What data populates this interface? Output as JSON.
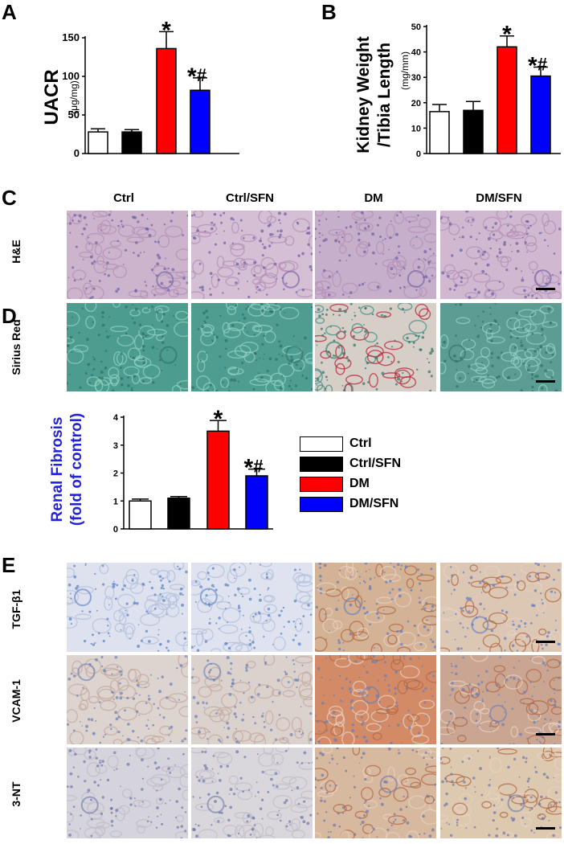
{
  "panels": {
    "A": "A",
    "B": "B",
    "C": "C",
    "D": "D",
    "E": "E"
  },
  "colors": {
    "ctrl": "#ffffff",
    "ctrl_sfn": "#000000",
    "dm": "#ff0000",
    "dm_sfn": "#0000ff",
    "fibrosis_label": "#2323d8"
  },
  "chart_data": [
    {
      "id": "A",
      "type": "bar",
      "categories": [
        "Ctrl",
        "Ctrl/SFN",
        "DM",
        "DM/SFN"
      ],
      "values": [
        28,
        28,
        136,
        82
      ],
      "errors": [
        4,
        3,
        22,
        16
      ],
      "annotations": [
        "",
        "",
        "*",
        "*#"
      ],
      "ylabel": "UACR",
      "yunit": "(μg/mg)",
      "ylim": [
        0,
        150
      ],
      "yticks": [
        "0",
        "50",
        "100",
        "150"
      ]
    },
    {
      "id": "B",
      "type": "bar",
      "categories": [
        "Ctrl",
        "Ctrl/SFN",
        "DM",
        "DM/SFN"
      ],
      "values": [
        16.5,
        17,
        42,
        30.5
      ],
      "errors": [
        2.8,
        3.5,
        4.3,
        3.5
      ],
      "annotations": [
        "",
        "",
        "*",
        "*#"
      ],
      "ylabel_line1": "Kidney Weight",
      "ylabel_line2": "/Tibia Length",
      "yunit": "(mg/mm)",
      "ylim": [
        0,
        50
      ],
      "yticks": [
        "0",
        "10",
        "20",
        "30",
        "40",
        "50"
      ]
    },
    {
      "id": "D",
      "type": "bar",
      "categories": [
        "Ctrl",
        "Ctrl/SFN",
        "DM",
        "DM/SFN"
      ],
      "values": [
        1.0,
        1.1,
        3.5,
        1.9
      ],
      "errors": [
        0.07,
        0.06,
        0.38,
        0.24
      ],
      "annotations": [
        "",
        "",
        "*",
        "*#"
      ],
      "ylabel_line1": "Renal Fibrosis",
      "ylabel_line2": "(fold of control)",
      "ylim": [
        0,
        4
      ],
      "yticks": [
        "0",
        "1",
        "2",
        "3",
        "4"
      ]
    }
  ],
  "histology": {
    "column_headers": [
      "Ctrl",
      "Ctrl/SFN",
      "DM",
      "DM/SFN"
    ],
    "he_label": "H&E",
    "sirius_label": "Sirius Red",
    "ihc_labels": [
      "TGF-β1",
      "VCAM-1",
      "3-NT"
    ]
  },
  "legend": [
    {
      "label": "Ctrl",
      "color": "#ffffff"
    },
    {
      "label": "Ctrl/SFN",
      "color": "#000000"
    },
    {
      "label": "DM",
      "color": "#ff0000"
    },
    {
      "label": "DM/SFN",
      "color": "#0000ff"
    }
  ]
}
